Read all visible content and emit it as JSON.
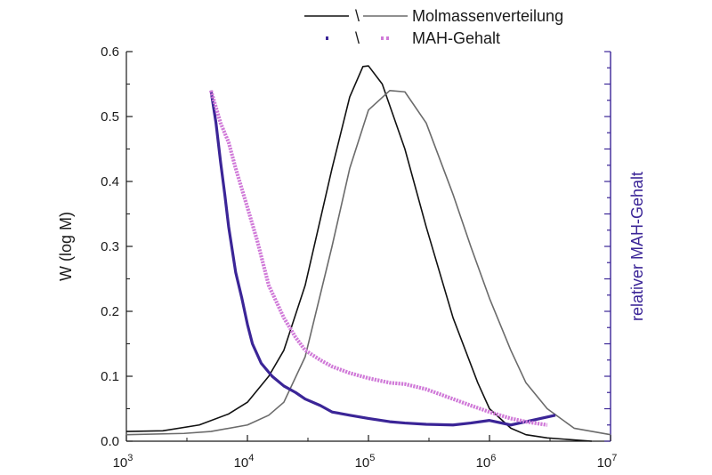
{
  "chart_data": {
    "type": "line",
    "ylabel": "W (log M)",
    "y2label": "relativer MAH-Gehalt",
    "xscale": "log",
    "xlim": [
      1000,
      10000000
    ],
    "ylim": [
      0,
      0.6
    ],
    "x_ticks": [
      {
        "value": 1000,
        "base": "10",
        "exp": "3"
      },
      {
        "value": 10000,
        "base": "10",
        "exp": "4"
      },
      {
        "value": 100000,
        "base": "10",
        "exp": "5"
      },
      {
        "value": 1000000,
        "base": "10",
        "exp": "6"
      },
      {
        "value": 10000000,
        "base": "10",
        "exp": "7"
      }
    ],
    "y_ticks": [
      "0.0",
      "0.1",
      "0.2",
      "0.3",
      "0.4",
      "0.5",
      "0.6"
    ],
    "grid": false,
    "legend": {
      "placement": "top-right",
      "entries": [
        {
          "label": "Molmassenverteilung",
          "separator": "\\",
          "styles": [
            "solid-black",
            "solid-gray"
          ]
        },
        {
          "label": "MAH-Gehalt",
          "separator": "\\",
          "styles": [
            "dotted-indigo",
            "dotted-violet"
          ]
        }
      ]
    },
    "colors": {
      "mw_a": "#111111",
      "mw_b": "#6b6b6b",
      "mah_a": "#3b2597",
      "mah_b": "#d07ad8",
      "right_axis": "#3b2597"
    },
    "series": [
      {
        "key": "mw_a",
        "x": [
          1000,
          2000,
          4000,
          7000,
          10000,
          15000,
          20000,
          30000,
          50000,
          70000,
          90000,
          100000,
          130000,
          200000,
          300000,
          500000,
          800000,
          1000000,
          1500000,
          2000000,
          3000000,
          5000000,
          7000000
        ],
        "y": [
          0.015,
          0.016,
          0.025,
          0.042,
          0.06,
          0.1,
          0.14,
          0.24,
          0.42,
          0.53,
          0.577,
          0.578,
          0.55,
          0.45,
          0.33,
          0.19,
          0.09,
          0.05,
          0.02,
          0.01,
          0.005,
          0.002,
          0
        ]
      },
      {
        "key": "mw_b",
        "x": [
          1000,
          3000,
          5000,
          10000,
          15000,
          20000,
          30000,
          50000,
          70000,
          100000,
          150000,
          200000,
          300000,
          500000,
          700000,
          1000000,
          1500000,
          2000000,
          3000000,
          5000000,
          10000000
        ],
        "y": [
          0.01,
          0.012,
          0.015,
          0.025,
          0.04,
          0.06,
          0.13,
          0.3,
          0.42,
          0.51,
          0.54,
          0.538,
          0.49,
          0.38,
          0.3,
          0.22,
          0.14,
          0.09,
          0.05,
          0.02,
          0.01
        ]
      },
      {
        "key": "mah_a",
        "x": [
          5000,
          5500,
          6000,
          6500,
          7000,
          8000,
          9000,
          10000,
          11000,
          13000,
          16000,
          20000,
          25000,
          30000,
          40000,
          50000,
          70000,
          100000,
          150000,
          200000,
          300000,
          500000,
          700000,
          1000000,
          1500000,
          2000000,
          3500000
        ],
        "y": [
          0.54,
          0.49,
          0.43,
          0.38,
          0.33,
          0.26,
          0.22,
          0.18,
          0.15,
          0.12,
          0.1,
          0.085,
          0.075,
          0.065,
          0.055,
          0.045,
          0.04,
          0.035,
          0.03,
          0.028,
          0.026,
          0.025,
          0.028,
          0.032,
          0.025,
          0.03,
          0.04
        ]
      },
      {
        "key": "mah_b",
        "x": [
          5000,
          6000,
          7000,
          8000,
          10000,
          12000,
          15000,
          20000,
          25000,
          30000,
          40000,
          50000,
          70000,
          100000,
          150000,
          200000,
          300000,
          500000,
          700000,
          1000000,
          1500000,
          2000000,
          3000000
        ],
        "y": [
          0.54,
          0.49,
          0.46,
          0.42,
          0.36,
          0.31,
          0.24,
          0.19,
          0.16,
          0.14,
          0.125,
          0.115,
          0.105,
          0.097,
          0.09,
          0.088,
          0.08,
          0.065,
          0.055,
          0.045,
          0.035,
          0.03,
          0.025
        ]
      }
    ]
  }
}
